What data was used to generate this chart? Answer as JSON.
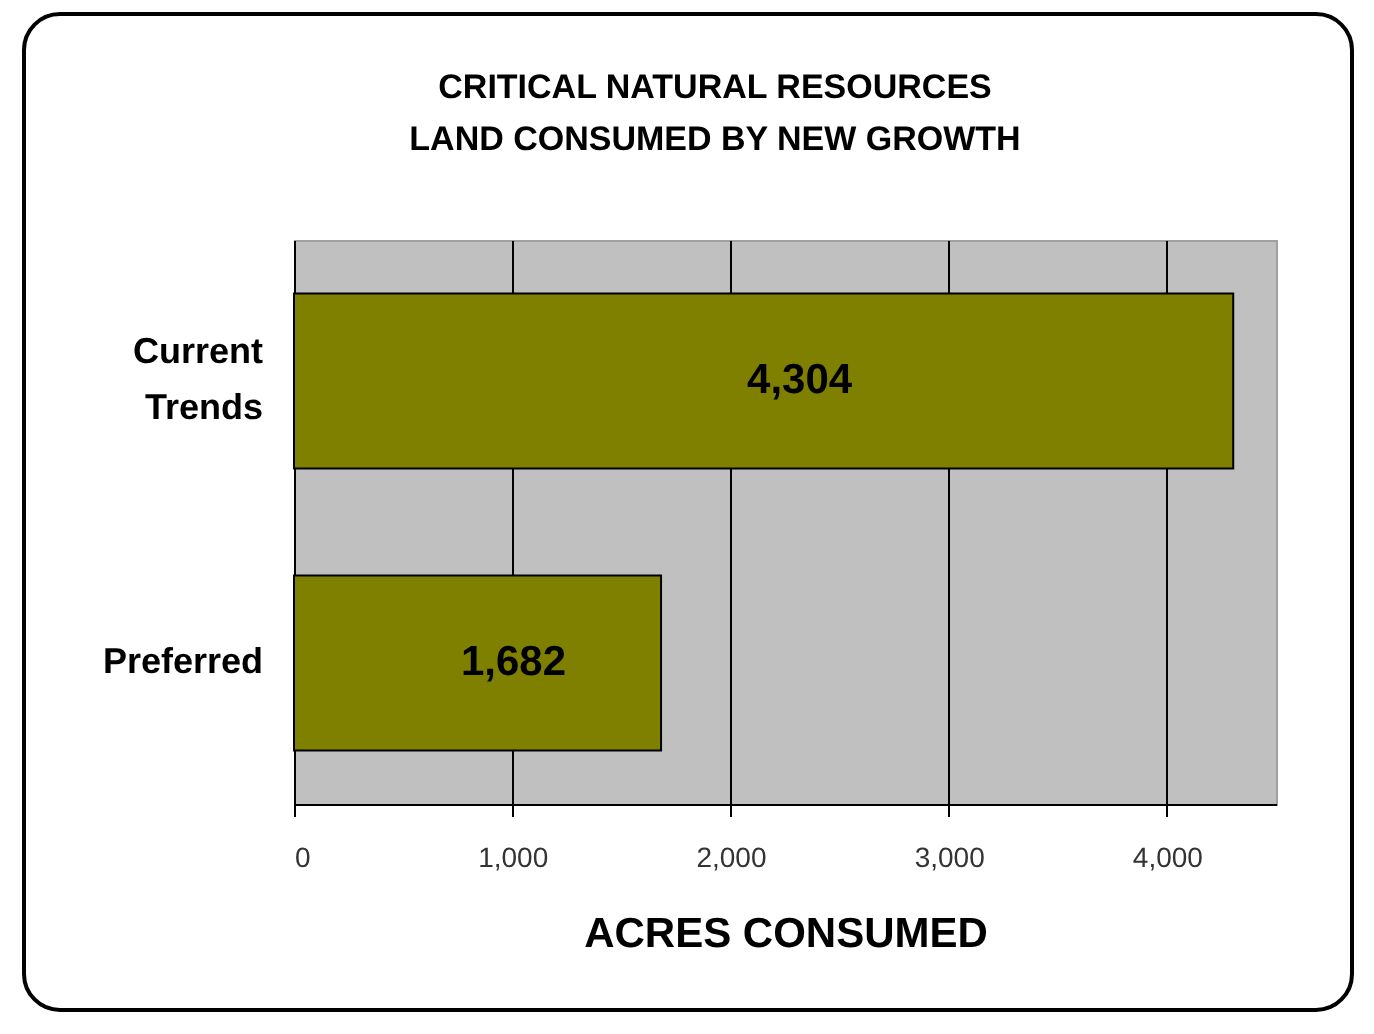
{
  "chart_data": {
    "type": "bar",
    "orientation": "horizontal",
    "title": "CRITICAL NATURAL RESOURCES\nLAND CONSUMED BY NEW GROWTH",
    "xlabel": "ACRES CONSUMED",
    "categories": [
      "Current Trends",
      "Preferred"
    ],
    "values": [
      4304,
      1682
    ],
    "value_labels": [
      "4,304",
      "1,682"
    ],
    "color": "#7f7f00",
    "xlim": [
      0,
      4500
    ],
    "xticks": [
      0,
      {
        "value": 1000,
        "label": "1,000"
      },
      {
        "value": 2000,
        "label": "2,000"
      },
      {
        "value": 3000,
        "label": "3,000"
      },
      {
        "value": 4000,
        "label": "4,000"
      }
    ],
    "grid": "x"
  }
}
